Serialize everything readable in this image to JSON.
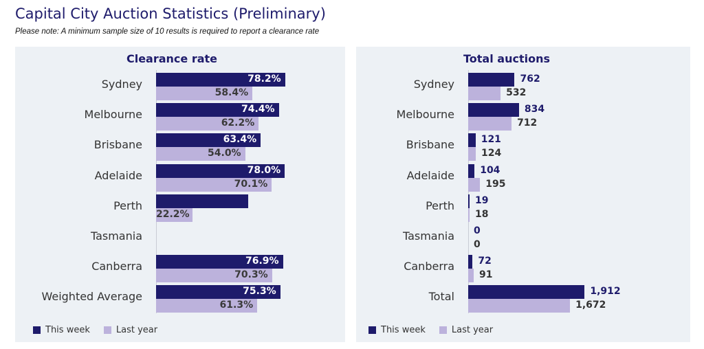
{
  "title": "Capital City Auction Statistics (Preliminary)",
  "subtitle": "Please note: A minimum sample size of 10 results is required to report a clearance rate",
  "legend": {
    "this_week": "This week",
    "last_year": "Last year"
  },
  "colors": {
    "this_week": "#1e1b6b",
    "last_year": "#bcb2dc",
    "panel_bg": "#edf1f5"
  },
  "chart_data": [
    {
      "type": "bar",
      "orientation": "horizontal",
      "title": "Clearance rate",
      "categories": [
        "Sydney",
        "Melbourne",
        "Brisbane",
        "Adelaide",
        "Perth",
        "Tasmania",
        "Canberra",
        "Weighted Average"
      ],
      "series": [
        {
          "name": "This week",
          "values": [
            78.2,
            74.4,
            63.4,
            78.0,
            56.0,
            null,
            76.9,
            75.3
          ],
          "labels": [
            "78.2%",
            "74.4%",
            "63.4%",
            "78.0%",
            "",
            "",
            "76.9%",
            "75.3%"
          ]
        },
        {
          "name": "Last year",
          "values": [
            58.4,
            62.2,
            54.0,
            70.1,
            22.2,
            null,
            70.3,
            61.3
          ],
          "labels": [
            "58.4%",
            "62.2%",
            "54.0%",
            "70.1%",
            "22.2%",
            "",
            "70.3%",
            "61.3%"
          ]
        }
      ],
      "xlim": [
        0,
        100
      ],
      "legend_position": "bottom-left",
      "grid": false
    },
    {
      "type": "bar",
      "orientation": "horizontal",
      "title": "Total auctions",
      "categories": [
        "Sydney",
        "Melbourne",
        "Brisbane",
        "Adelaide",
        "Perth",
        "Tasmania",
        "Canberra",
        "Total"
      ],
      "series": [
        {
          "name": "This week",
          "values": [
            762,
            834,
            121,
            104,
            19,
            0,
            72,
            1912
          ],
          "labels": [
            "762",
            "834",
            "121",
            "104",
            "19",
            "0",
            "72",
            "1,912"
          ]
        },
        {
          "name": "Last year",
          "values": [
            532,
            712,
            124,
            195,
            18,
            0,
            91,
            1672
          ],
          "labels": [
            "532",
            "712",
            "124",
            "195",
            "18",
            "0",
            "91",
            "1,672"
          ]
        }
      ],
      "xlim": [
        0,
        2100
      ],
      "legend_position": "bottom-left",
      "grid": false
    }
  ]
}
